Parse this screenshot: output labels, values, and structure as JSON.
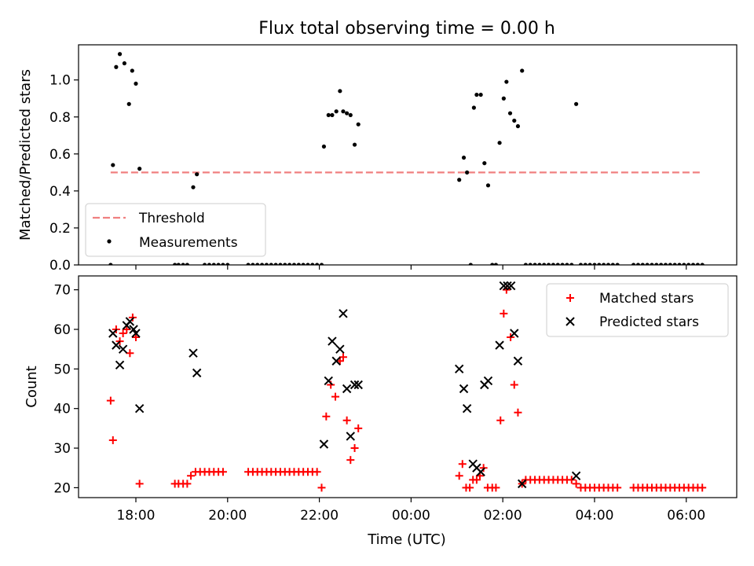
{
  "chart_data": {
    "title": "Flux total observing time = 0.00 h",
    "x_tick_labels": [
      "18:00",
      "20:00",
      "22:00",
      "00:00",
      "02:00",
      "04:00",
      "06:00"
    ],
    "x_ticks_hours": [
      18,
      20,
      22,
      24,
      26,
      28,
      30
    ],
    "xlim_hours": [
      16.75,
      31.1
    ],
    "xlabel": "Time (UTC)",
    "panels": [
      {
        "type": "scatter",
        "ylabel": "Matched/Predicted stars",
        "ylim": [
          0,
          1.19
        ],
        "y_ticks": [
          0.0,
          0.2,
          0.4,
          0.6,
          0.8,
          1.0
        ],
        "y_tick_labels": [
          "0.0",
          "0.2",
          "0.4",
          "0.6",
          "0.8",
          "1.0"
        ],
        "legend_position": "lower-left",
        "grid": false,
        "threshold": {
          "name": "Threshold",
          "y": 0.5,
          "x_range": [
            17.45,
            30.35
          ],
          "color": "#f08080"
        },
        "measurements": {
          "name": "Measurements",
          "color": "#000000",
          "points": [
            [
              17.45,
              0.0
            ],
            [
              17.5,
              0.54
            ],
            [
              17.57,
              1.07
            ],
            [
              17.65,
              1.14
            ],
            [
              17.75,
              1.09
            ],
            [
              17.85,
              0.87
            ],
            [
              17.92,
              1.05
            ],
            [
              18.0,
              0.98
            ],
            [
              18.08,
              0.52
            ],
            [
              18.85,
              0.0
            ],
            [
              18.93,
              0.0
            ],
            [
              19.03,
              0.0
            ],
            [
              19.12,
              0.0
            ],
            [
              19.25,
              0.42
            ],
            [
              19.33,
              0.49
            ],
            [
              19.5,
              0.0
            ],
            [
              19.6,
              0.0
            ],
            [
              19.7,
              0.0
            ],
            [
              19.8,
              0.0
            ],
            [
              19.9,
              0.0
            ],
            [
              20.0,
              0.0
            ],
            [
              20.45,
              0.0
            ],
            [
              20.55,
              0.0
            ],
            [
              20.65,
              0.0
            ],
            [
              20.75,
              0.0
            ],
            [
              20.85,
              0.0
            ],
            [
              20.95,
              0.0
            ],
            [
              21.05,
              0.0
            ],
            [
              21.15,
              0.0
            ],
            [
              21.25,
              0.0
            ],
            [
              21.35,
              0.0
            ],
            [
              21.45,
              0.0
            ],
            [
              21.55,
              0.0
            ],
            [
              21.65,
              0.0
            ],
            [
              21.75,
              0.0
            ],
            [
              21.85,
              0.0
            ],
            [
              21.95,
              0.0
            ],
            [
              22.05,
              0.0
            ],
            [
              22.1,
              0.64
            ],
            [
              22.2,
              0.81
            ],
            [
              22.28,
              0.81
            ],
            [
              22.37,
              0.83
            ],
            [
              22.45,
              0.94
            ],
            [
              22.52,
              0.83
            ],
            [
              22.6,
              0.82
            ],
            [
              22.68,
              0.81
            ],
            [
              22.77,
              0.65
            ],
            [
              22.85,
              0.76
            ],
            [
              25.05,
              0.46
            ],
            [
              25.15,
              0.58
            ],
            [
              25.22,
              0.5
            ],
            [
              25.3,
              0.0
            ],
            [
              25.37,
              0.85
            ],
            [
              25.43,
              0.92
            ],
            [
              25.52,
              0.92
            ],
            [
              25.6,
              0.55
            ],
            [
              25.68,
              0.43
            ],
            [
              25.77,
              0.0
            ],
            [
              25.85,
              0.0
            ],
            [
              25.93,
              0.66
            ],
            [
              26.02,
              0.9
            ],
            [
              26.08,
              0.99
            ],
            [
              26.16,
              0.82
            ],
            [
              26.25,
              0.78
            ],
            [
              26.33,
              0.75
            ],
            [
              26.42,
              1.05
            ],
            [
              26.5,
              0.0
            ],
            [
              26.6,
              0.0
            ],
            [
              26.7,
              0.0
            ],
            [
              26.8,
              0.0
            ],
            [
              26.9,
              0.0
            ],
            [
              27.0,
              0.0
            ],
            [
              27.1,
              0.0
            ],
            [
              27.2,
              0.0
            ],
            [
              27.3,
              0.0
            ],
            [
              27.4,
              0.0
            ],
            [
              27.5,
              0.0
            ],
            [
              27.6,
              0.87
            ],
            [
              27.7,
              0.0
            ],
            [
              27.8,
              0.0
            ],
            [
              27.9,
              0.0
            ],
            [
              28.0,
              0.0
            ],
            [
              28.1,
              0.0
            ],
            [
              28.2,
              0.0
            ],
            [
              28.3,
              0.0
            ],
            [
              28.4,
              0.0
            ],
            [
              28.5,
              0.0
            ],
            [
              28.85,
              0.0
            ],
            [
              28.95,
              0.0
            ],
            [
              29.05,
              0.0
            ],
            [
              29.15,
              0.0
            ],
            [
              29.25,
              0.0
            ],
            [
              29.35,
              0.0
            ],
            [
              29.45,
              0.0
            ],
            [
              29.55,
              0.0
            ],
            [
              29.65,
              0.0
            ],
            [
              29.75,
              0.0
            ],
            [
              29.85,
              0.0
            ],
            [
              29.95,
              0.0
            ],
            [
              30.05,
              0.0
            ],
            [
              30.15,
              0.0
            ],
            [
              30.25,
              0.0
            ],
            [
              30.35,
              0.0
            ]
          ]
        }
      },
      {
        "type": "scatter",
        "ylabel": "Count",
        "ylim": [
          17.5,
          73.5
        ],
        "y_ticks": [
          20,
          30,
          40,
          50,
          60,
          70
        ],
        "y_tick_labels": [
          "20",
          "30",
          "40",
          "50",
          "60",
          "70"
        ],
        "legend_position": "top-right",
        "grid": false,
        "series": [
          {
            "name": "Matched stars",
            "marker": "plus",
            "color": "#ff0000",
            "points": [
              [
                17.45,
                42
              ],
              [
                17.5,
                32
              ],
              [
                17.57,
                60
              ],
              [
                17.65,
                57
              ],
              [
                17.72,
                59
              ],
              [
                17.8,
                60
              ],
              [
                17.87,
                54
              ],
              [
                17.93,
                63
              ],
              [
                18.0,
                58
              ],
              [
                18.08,
                21
              ],
              [
                18.85,
                21
              ],
              [
                18.93,
                21
              ],
              [
                19.03,
                21
              ],
              [
                19.12,
                21
              ],
              [
                19.2,
                23
              ],
              [
                19.3,
                24
              ],
              [
                19.4,
                24
              ],
              [
                19.5,
                24
              ],
              [
                19.6,
                24
              ],
              [
                19.7,
                24
              ],
              [
                19.8,
                24
              ],
              [
                19.9,
                24
              ],
              [
                20.45,
                24
              ],
              [
                20.55,
                24
              ],
              [
                20.65,
                24
              ],
              [
                20.75,
                24
              ],
              [
                20.85,
                24
              ],
              [
                20.95,
                24
              ],
              [
                21.05,
                24
              ],
              [
                21.15,
                24
              ],
              [
                21.25,
                24
              ],
              [
                21.35,
                24
              ],
              [
                21.45,
                24
              ],
              [
                21.55,
                24
              ],
              [
                21.65,
                24
              ],
              [
                21.75,
                24
              ],
              [
                21.85,
                24
              ],
              [
                21.95,
                24
              ],
              [
                22.05,
                20
              ],
              [
                22.15,
                38
              ],
              [
                22.25,
                46
              ],
              [
                22.35,
                43
              ],
              [
                22.45,
                52
              ],
              [
                22.52,
                53
              ],
              [
                22.6,
                37
              ],
              [
                22.68,
                27
              ],
              [
                22.77,
                30
              ],
              [
                22.85,
                35
              ],
              [
                25.05,
                23
              ],
              [
                25.12,
                26
              ],
              [
                25.2,
                20
              ],
              [
                25.28,
                20
              ],
              [
                25.35,
                22
              ],
              [
                25.43,
                22
              ],
              [
                25.5,
                23
              ],
              [
                25.58,
                25
              ],
              [
                25.67,
                20
              ],
              [
                25.77,
                20
              ],
              [
                25.85,
                20
              ],
              [
                25.95,
                37
              ],
              [
                26.02,
                64
              ],
              [
                26.08,
                70
              ],
              [
                26.17,
                58
              ],
              [
                26.25,
                46
              ],
              [
                26.33,
                39
              ],
              [
                26.42,
                21
              ],
              [
                26.5,
                22
              ],
              [
                26.6,
                22
              ],
              [
                26.7,
                22
              ],
              [
                26.8,
                22
              ],
              [
                26.9,
                22
              ],
              [
                27.0,
                22
              ],
              [
                27.1,
                22
              ],
              [
                27.2,
                22
              ],
              [
                27.3,
                22
              ],
              [
                27.4,
                22
              ],
              [
                27.5,
                22
              ],
              [
                27.6,
                21
              ],
              [
                27.7,
                20
              ],
              [
                27.8,
                20
              ],
              [
                27.9,
                20
              ],
              [
                28.0,
                20
              ],
              [
                28.1,
                20
              ],
              [
                28.2,
                20
              ],
              [
                28.3,
                20
              ],
              [
                28.4,
                20
              ],
              [
                28.5,
                20
              ],
              [
                28.85,
                20
              ],
              [
                28.95,
                20
              ],
              [
                29.05,
                20
              ],
              [
                29.15,
                20
              ],
              [
                29.25,
                20
              ],
              [
                29.35,
                20
              ],
              [
                29.45,
                20
              ],
              [
                29.55,
                20
              ],
              [
                29.65,
                20
              ],
              [
                29.75,
                20
              ],
              [
                29.85,
                20
              ],
              [
                29.95,
                20
              ],
              [
                30.05,
                20
              ],
              [
                30.15,
                20
              ],
              [
                30.25,
                20
              ],
              [
                30.35,
                20
              ]
            ]
          },
          {
            "name": "Predicted stars",
            "marker": "x",
            "color": "#000000",
            "points": [
              [
                17.5,
                59
              ],
              [
                17.57,
                56
              ],
              [
                17.65,
                51
              ],
              [
                17.72,
                55
              ],
              [
                17.8,
                61
              ],
              [
                17.87,
                62
              ],
              [
                17.95,
                60
              ],
              [
                18.0,
                59
              ],
              [
                18.08,
                40
              ],
              [
                19.25,
                54
              ],
              [
                19.33,
                49
              ],
              [
                22.1,
                31
              ],
              [
                22.2,
                47
              ],
              [
                22.28,
                57
              ],
              [
                22.37,
                52
              ],
              [
                22.45,
                55
              ],
              [
                22.52,
                64
              ],
              [
                22.6,
                45
              ],
              [
                22.68,
                33
              ],
              [
                22.77,
                46
              ],
              [
                22.85,
                46
              ],
              [
                25.05,
                50
              ],
              [
                25.15,
                45
              ],
              [
                25.22,
                40
              ],
              [
                25.35,
                26
              ],
              [
                25.43,
                25
              ],
              [
                25.52,
                24
              ],
              [
                25.6,
                46
              ],
              [
                25.68,
                47
              ],
              [
                25.93,
                56
              ],
              [
                26.02,
                71
              ],
              [
                26.1,
                71
              ],
              [
                26.18,
                71
              ],
              [
                26.25,
                59
              ],
              [
                26.33,
                52
              ],
              [
                26.42,
                21
              ],
              [
                27.6,
                23
              ]
            ]
          }
        ]
      }
    ]
  }
}
